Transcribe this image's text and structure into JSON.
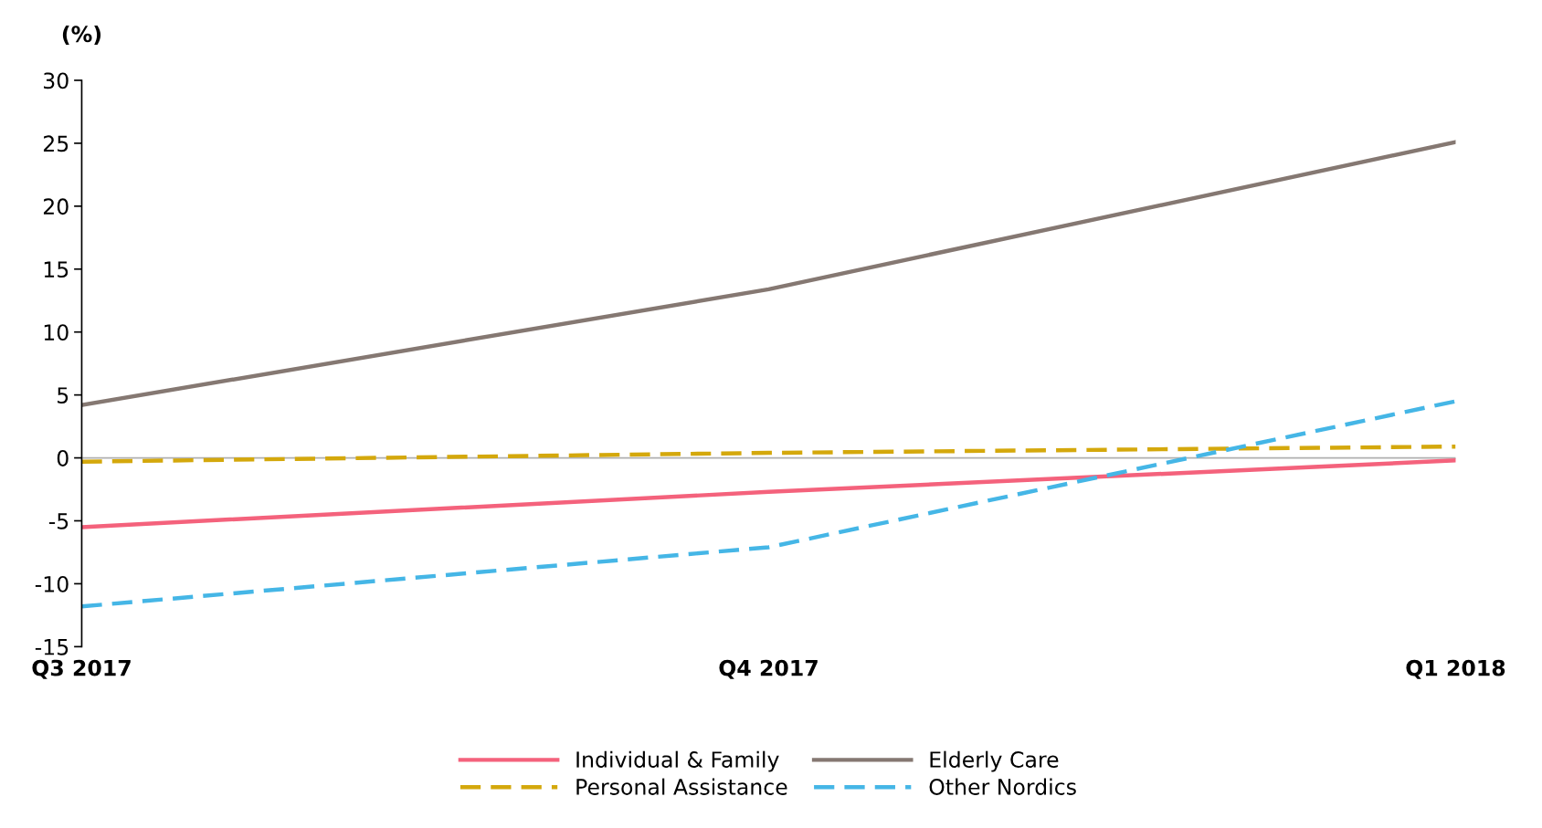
{
  "chart_data": {
    "type": "line",
    "ylabel": "(%)",
    "categories": [
      "Q3 2017",
      "Q4 2017",
      "Q1 2018"
    ],
    "series": [
      {
        "name": "Individual & Family",
        "color": "#f4627c",
        "values": [
          -5.5,
          -2.7,
          -0.2
        ],
        "line_style": "solid"
      },
      {
        "name": "Elderly Care",
        "color": "#857872",
        "values": [
          4.2,
          13.4,
          25.1
        ],
        "line_style": "solid"
      },
      {
        "name": "Personal Assistance",
        "color": "#d4a80c",
        "values": [
          -0.3,
          0.4,
          0.9
        ],
        "line_style": "dashed"
      },
      {
        "name": "Other Nordics",
        "color": "#45b6e6",
        "values": [
          -11.8,
          -7.1,
          4.5
        ],
        "line_style": "dashed"
      }
    ],
    "ylim": [
      -15,
      30
    ],
    "yticks": [
      -15,
      -10,
      -5,
      0,
      5,
      10,
      15,
      20,
      25,
      30
    ],
    "ref_lines": [
      {
        "axis": "y",
        "value": 0,
        "color": "#b0b0b0"
      }
    ],
    "grid": false,
    "legend": "bottom",
    "marker": "none"
  }
}
